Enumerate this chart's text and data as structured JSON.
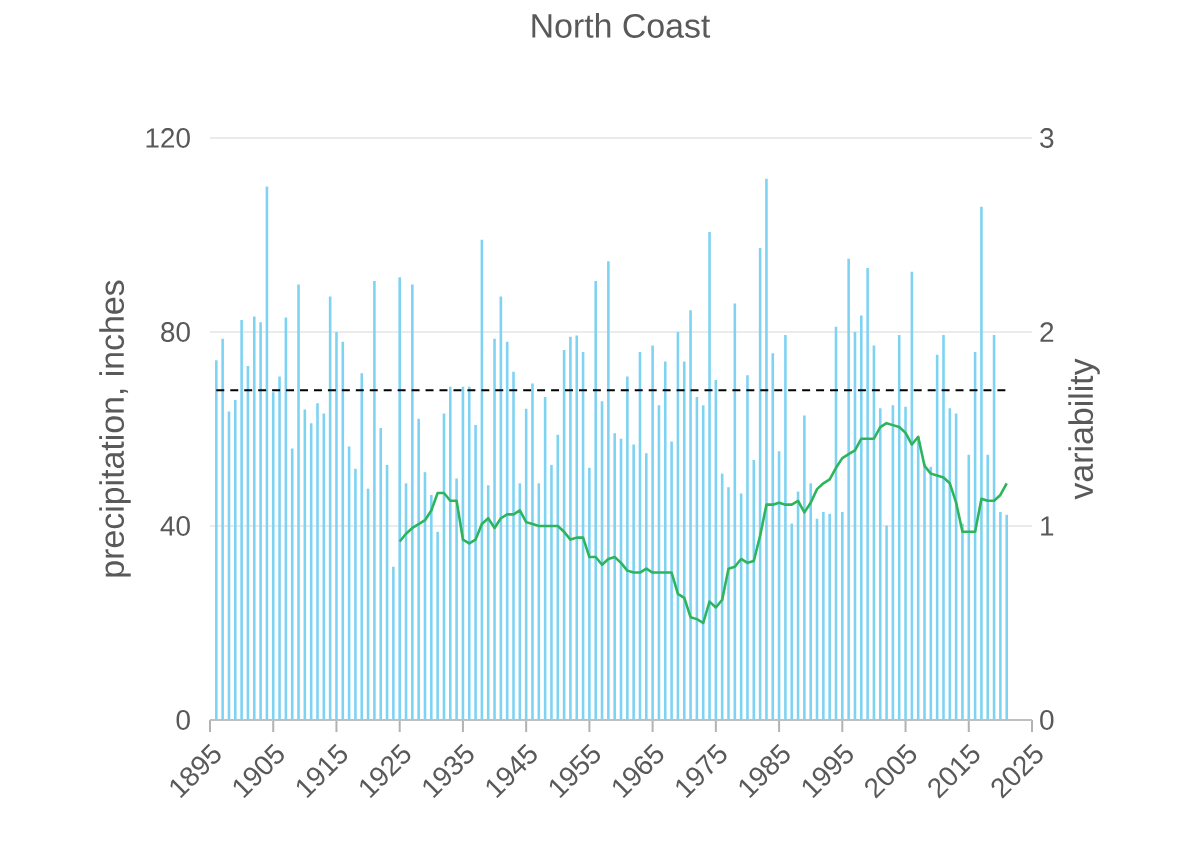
{
  "chart_data": {
    "type": "bar",
    "title": "North Coast",
    "ylabel": "precipitation, inches",
    "y2label": "variability",
    "x": [
      1896,
      1897,
      1898,
      1899,
      1900,
      1901,
      1902,
      1903,
      1904,
      1905,
      1906,
      1907,
      1908,
      1909,
      1910,
      1911,
      1912,
      1913,
      1914,
      1915,
      1916,
      1917,
      1918,
      1919,
      1920,
      1921,
      1922,
      1923,
      1924,
      1925,
      1926,
      1927,
      1928,
      1929,
      1930,
      1931,
      1932,
      1933,
      1934,
      1935,
      1936,
      1937,
      1938,
      1939,
      1940,
      1941,
      1942,
      1943,
      1944,
      1945,
      1946,
      1947,
      1948,
      1949,
      1950,
      1951,
      1952,
      1953,
      1954,
      1955,
      1956,
      1957,
      1958,
      1959,
      1960,
      1961,
      1962,
      1963,
      1964,
      1965,
      1966,
      1967,
      1968,
      1969,
      1970,
      1971,
      1972,
      1973,
      1974,
      1975,
      1976,
      1977,
      1978,
      1979,
      1980,
      1981,
      1982,
      1983,
      1984,
      1985,
      1986,
      1987,
      1988,
      1989,
      1990,
      1991,
      1992,
      1993,
      1994,
      1995,
      1996,
      1997,
      1998,
      1999,
      2000,
      2001,
      2002,
      2003,
      2004,
      2005,
      2006,
      2007,
      2008,
      2009,
      2010,
      2011,
      2012,
      2013,
      2014,
      2015,
      2016,
      2017,
      2018,
      2019,
      2020,
      2021
    ],
    "series": [
      {
        "color": "#7fd3f2",
        "values": [
          74.2,
          78.6,
          63.6,
          66,
          82.5,
          73,
          83.2,
          82,
          110,
          67.6,
          70.8,
          83,
          56,
          89.8,
          64,
          61.2,
          65.3,
          63.2,
          87.3,
          80,
          78,
          56.4,
          51.8,
          71.5,
          47.7,
          90.5,
          60.2,
          52.6,
          31.6,
          91.3,
          48.8,
          89.8,
          62.1,
          51.1,
          46.4,
          38.8,
          63.2,
          68.7,
          49.8,
          68.7,
          68.7,
          60.8,
          99,
          48.4,
          78.6,
          87.3,
          78,
          71.8,
          48.8,
          64.2,
          69.4,
          48.8,
          66.6,
          52.6,
          58.8,
          76.3,
          79,
          79.3,
          75.9,
          52,
          90.5,
          65.7,
          94.6,
          59.1,
          58,
          70.8,
          56.8,
          75.9,
          55,
          77.2,
          64.9,
          73.9,
          57.4,
          80,
          73.9,
          84.5,
          66.6,
          64.9,
          100.6,
          70.1,
          50.8,
          48,
          85.9,
          46.7,
          71.1,
          53.6,
          97.3,
          111.6,
          75.6,
          55.4,
          79.4,
          40.5,
          47.1,
          62.8,
          48.8,
          41.5,
          42.9,
          42.5,
          81.1,
          42.9,
          95.1,
          80,
          83.4,
          93.2,
          77.2,
          64.3,
          40.1,
          64.9,
          79.4,
          64.6,
          92.4,
          58.4,
          52.9,
          52.2,
          75.3,
          79.4,
          64.3,
          63.2,
          40.5,
          54.7,
          75.9,
          105.8,
          54.7,
          79.4,
          42.9,
          42.3
        ]
      },
      {
        "type": "line",
        "axis": "y2",
        "color": "#2db45d",
        "values": [
          null,
          null,
          null,
          null,
          null,
          null,
          null,
          null,
          null,
          null,
          null,
          null,
          null,
          null,
          null,
          null,
          null,
          null,
          null,
          null,
          null,
          null,
          null,
          null,
          null,
          null,
          null,
          null,
          null,
          0.92,
          0.96,
          0.99,
          1.01,
          1.03,
          1.08,
          1.17,
          1.17,
          1.13,
          1.13,
          0.93,
          0.91,
          0.93,
          1.01,
          1.04,
          0.99,
          1.04,
          1.06,
          1.06,
          1.08,
          1.02,
          1.01,
          1.0,
          1.0,
          1.0,
          1.0,
          0.97,
          0.93,
          0.94,
          0.94,
          0.84,
          0.84,
          0.8,
          0.83,
          0.84,
          0.81,
          0.77,
          0.76,
          0.76,
          0.78,
          0.76,
          0.76,
          0.76,
          0.76,
          0.65,
          0.63,
          0.53,
          0.52,
          0.5,
          0.61,
          0.58,
          0.62,
          0.78,
          0.79,
          0.83,
          0.81,
          0.82,
          0.95,
          1.11,
          1.11,
          1.12,
          1.11,
          1.11,
          1.13,
          1.07,
          1.12,
          1.19,
          1.22,
          1.24,
          1.3,
          1.35,
          1.37,
          1.39,
          1.45,
          1.45,
          1.45,
          1.51,
          1.53,
          1.52,
          1.51,
          1.48,
          1.42,
          1.46,
          1.31,
          1.27,
          1.26,
          1.25,
          1.22,
          1.12,
          0.97,
          0.97,
          0.97,
          1.14,
          1.13,
          1.13,
          1.16,
          1.22
        ]
      }
    ],
    "xlim": [
      1895,
      2025
    ],
    "xticks": [
      1895,
      1905,
      1915,
      1925,
      1935,
      1945,
      1955,
      1965,
      1975,
      1985,
      1995,
      2005,
      2015,
      2025
    ],
    "ylim": [
      0,
      120
    ],
    "yticks": [
      0,
      40,
      80,
      120
    ],
    "y2lim": [
      0,
      3
    ],
    "y2ticks": [
      0,
      1,
      2,
      3
    ],
    "grid": "y",
    "ref_lines": [
      {
        "axis": "y",
        "value": 68,
        "color": "#000000",
        "line_style": "dashed"
      }
    ]
  }
}
